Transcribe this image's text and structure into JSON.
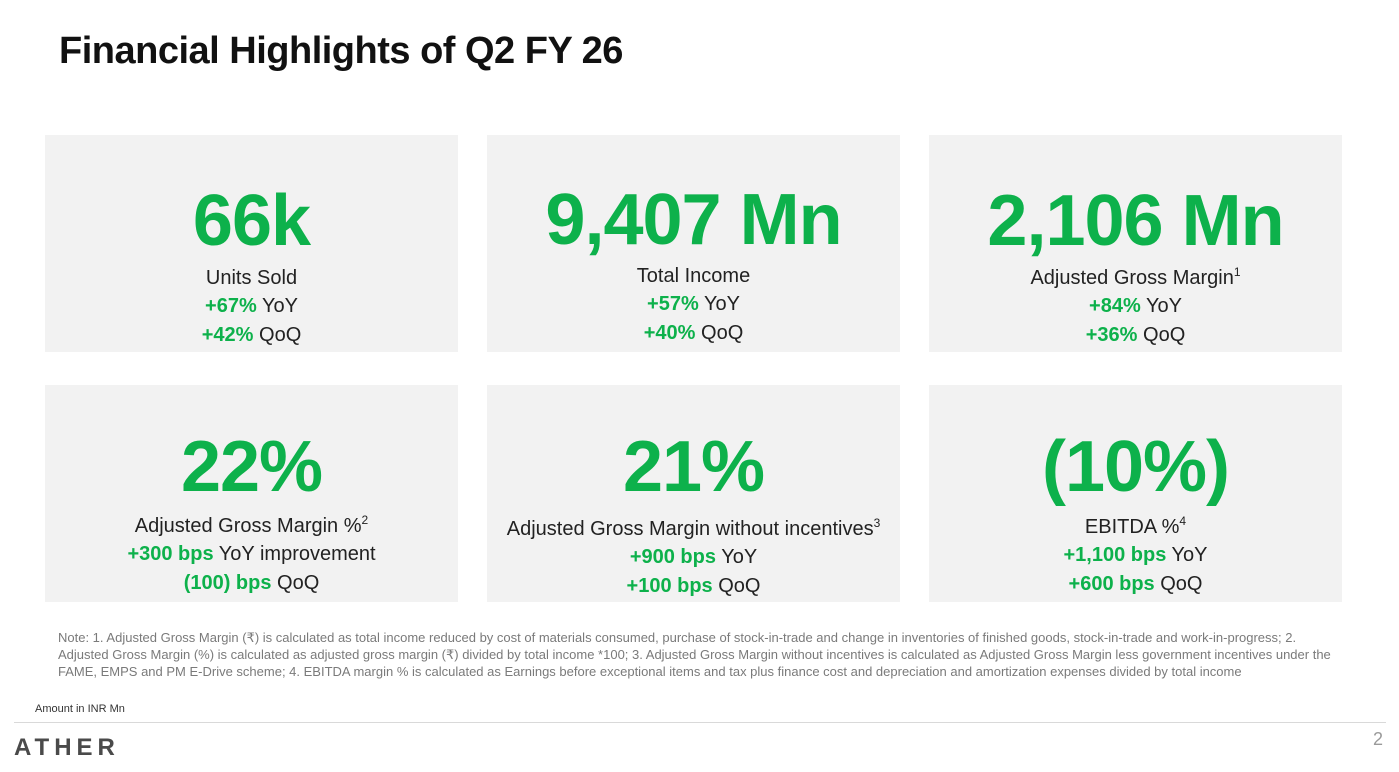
{
  "title": "Financial Highlights of Q2 FY 26",
  "accent_color": "#0db14b",
  "cards": [
    {
      "value": "66k",
      "label": "Units Sold",
      "footnote": "",
      "lines": [
        {
          "highlight": "+67%",
          "suffix": " YoY"
        },
        {
          "highlight": "+42%",
          "suffix": " QoQ"
        }
      ]
    },
    {
      "value": "9,407 Mn",
      "label": "Total Income",
      "footnote": "",
      "lines": [
        {
          "highlight": "+57%",
          "suffix": " YoY"
        },
        {
          "highlight": "+40%",
          "suffix": " QoQ"
        }
      ]
    },
    {
      "value": "2,106 Mn",
      "label": "Adjusted Gross Margin",
      "footnote": "1",
      "lines": [
        {
          "highlight": "+84%",
          "suffix": " YoY"
        },
        {
          "highlight": "+36%",
          "suffix": " QoQ"
        }
      ]
    },
    {
      "value": "22%",
      "label": "Adjusted Gross Margin %",
      "footnote": "2",
      "lines": [
        {
          "highlight": "+300 bps",
          "suffix": " YoY improvement"
        },
        {
          "highlight": "(100) bps",
          "suffix": " QoQ"
        }
      ]
    },
    {
      "value": "21%",
      "label": "Adjusted Gross Margin without incentives",
      "footnote": "3",
      "lines": [
        {
          "highlight": "+900 bps",
          "suffix": " YoY"
        },
        {
          "highlight": "+100 bps",
          "suffix": " QoQ"
        }
      ]
    },
    {
      "value": "(10%)",
      "label": "EBITDA %",
      "footnote": "4",
      "lines": [
        {
          "highlight": "+1,100 bps",
          "suffix": " YoY"
        },
        {
          "highlight": "+600 bps",
          "suffix": " QoQ"
        }
      ]
    }
  ],
  "note": "Note: 1. Adjusted Gross Margin (₹) is calculated as total income reduced by cost of materials consumed, purchase of stock-in-trade and change in inventories of finished goods, stock-in-trade and work-in-progress; 2. Adjusted Gross Margin (%) is calculated as adjusted gross margin (₹) divided by total income *100; 3. Adjusted Gross Margin without incentives is calculated as Adjusted Gross Margin less government incentives under the FAME, EMPS and PM E-Drive scheme; 4. EBITDA margin % is calculated as Earnings before exceptional items and tax plus finance cost and depreciation and amortization expenses divided by total income",
  "amount_note": "Amount in INR Mn",
  "footer": {
    "logo_text": "ATHER",
    "page_number": "2"
  }
}
